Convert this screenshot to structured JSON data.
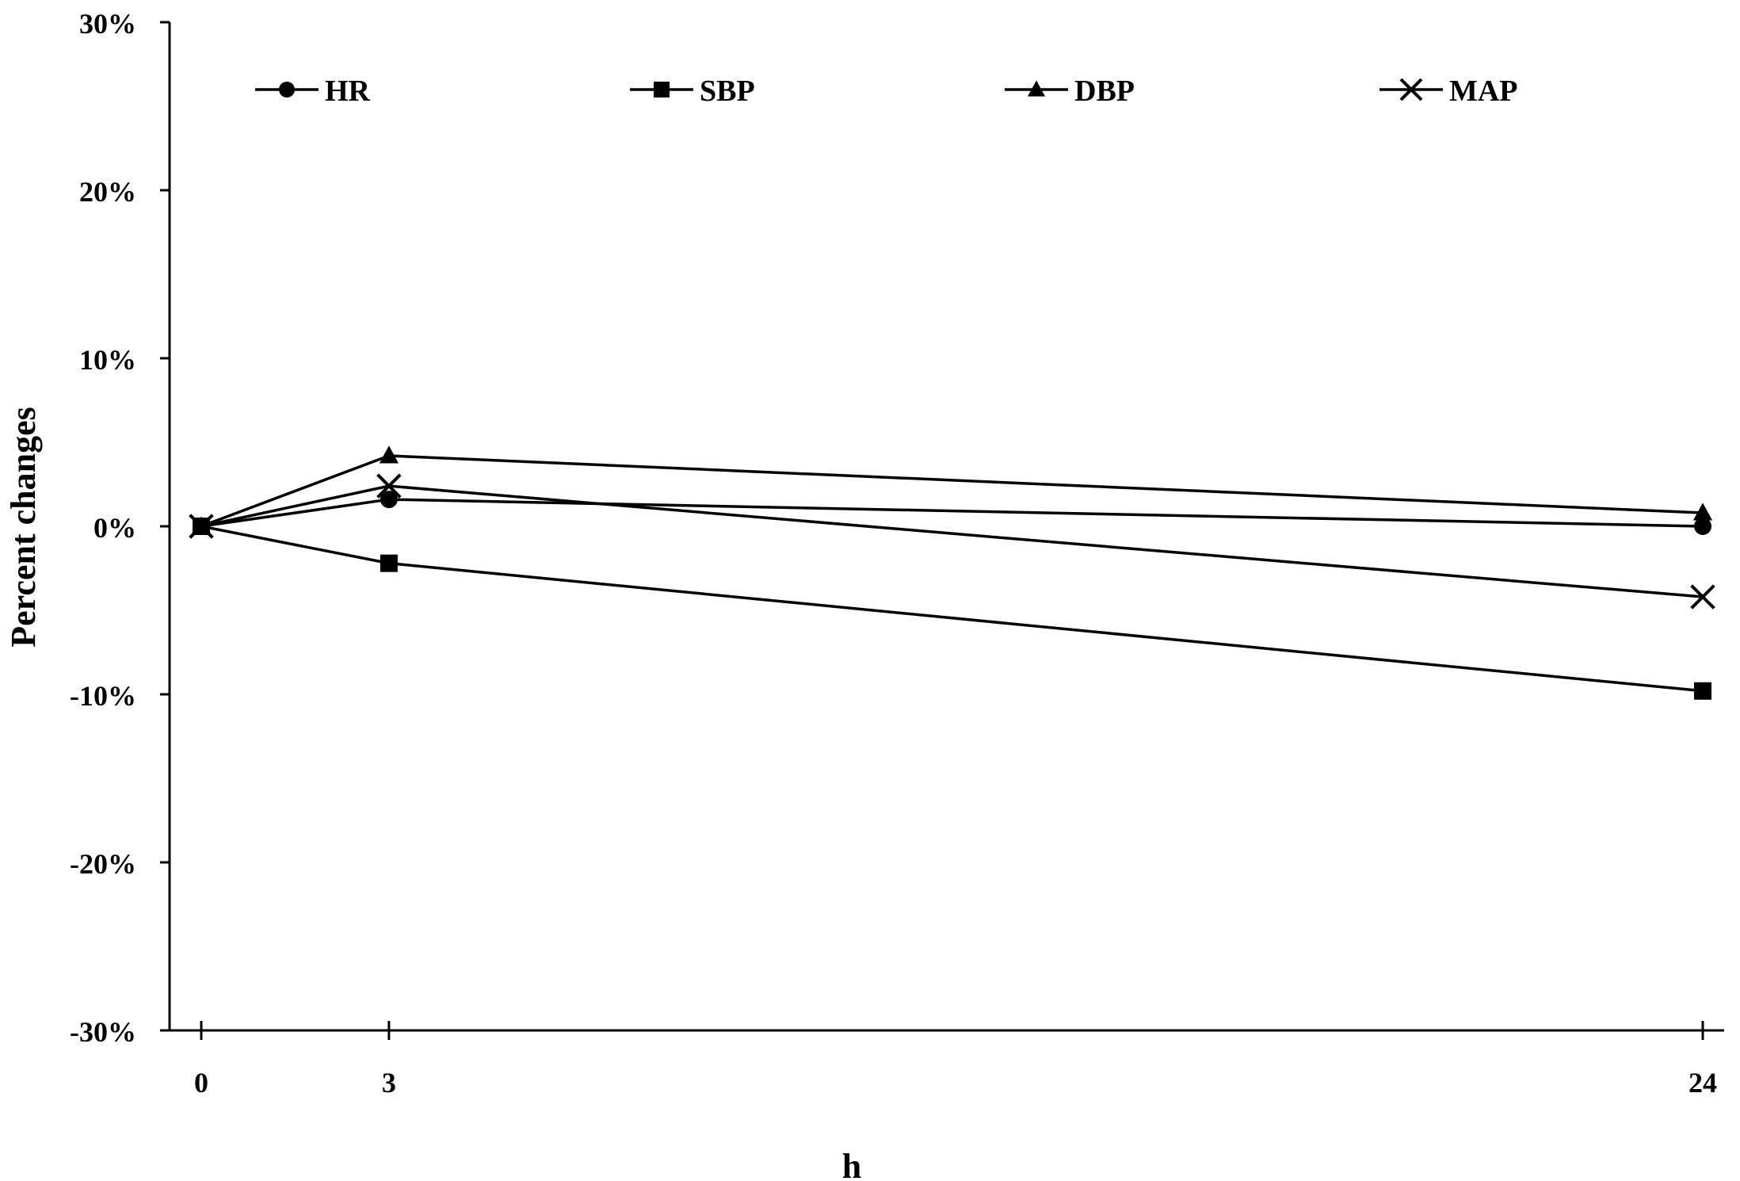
{
  "chart_data": {
    "type": "line",
    "title": "",
    "xlabel": "h",
    "ylabel": "Percent changes",
    "x": [
      0,
      3,
      24
    ],
    "x_tick_labels": [
      "0",
      "3",
      "24"
    ],
    "ylim": [
      -0.3,
      0.3
    ],
    "y_ticks": [
      0.3,
      0.2,
      0.1,
      0.0,
      -0.1,
      -0.2,
      -0.3
    ],
    "y_tick_labels": [
      "30%",
      "20%",
      "10%",
      "0%",
      "-10%",
      "-20%",
      "-30%"
    ],
    "grid": false,
    "legend_position": "top",
    "series": [
      {
        "name": "HR",
        "marker": "circle",
        "values": [
          0.0,
          0.016,
          0.0
        ]
      },
      {
        "name": "SBP",
        "marker": "square",
        "values": [
          0.0,
          -0.022,
          -0.098
        ]
      },
      {
        "name": "DBP",
        "marker": "triangle",
        "values": [
          0.0,
          0.042,
          0.008
        ]
      },
      {
        "name": "MAP",
        "marker": "x",
        "values": [
          0.0,
          0.024,
          -0.042
        ]
      }
    ],
    "line_color": "#000000"
  }
}
